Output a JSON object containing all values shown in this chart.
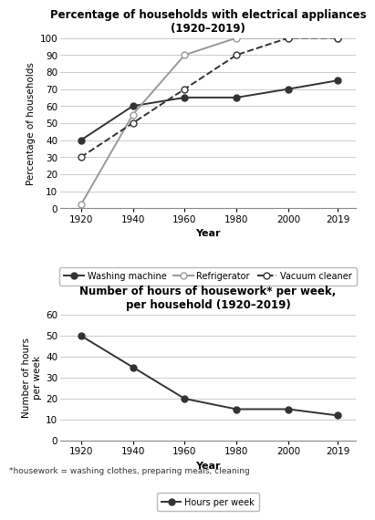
{
  "years": [
    1920,
    1940,
    1960,
    1980,
    2000,
    2019
  ],
  "washing_machine": [
    40,
    60,
    65,
    65,
    70,
    75
  ],
  "refrigerator": [
    2,
    55,
    90,
    100,
    100,
    100
  ],
  "vacuum_cleaner": [
    30,
    50,
    70,
    90,
    100,
    100
  ],
  "hours_per_week": [
    50,
    35,
    20,
    15,
    15,
    12
  ],
  "chart1_title": "Percentage of households with electrical appliances\n(1920–2019)",
  "chart1_ylabel": "Percentage of households",
  "chart1_xlabel": "Year",
  "chart1_ylim": [
    0,
    100
  ],
  "chart1_yticks": [
    0,
    10,
    20,
    30,
    40,
    50,
    60,
    70,
    80,
    90,
    100
  ],
  "chart2_title": "Number of hours of housework* per week,\nper household (1920–2019)",
  "chart2_ylabel": "Number of hours\nper week",
  "chart2_xlabel": "Year",
  "chart2_ylim": [
    0,
    60
  ],
  "chart2_yticks": [
    0,
    10,
    20,
    30,
    40,
    50,
    60
  ],
  "footnote": "*housework = washing clothes, preparing meals, cleaning",
  "line_color": "#333333",
  "bg_color": "#ffffff",
  "grid_color": "#cccccc"
}
